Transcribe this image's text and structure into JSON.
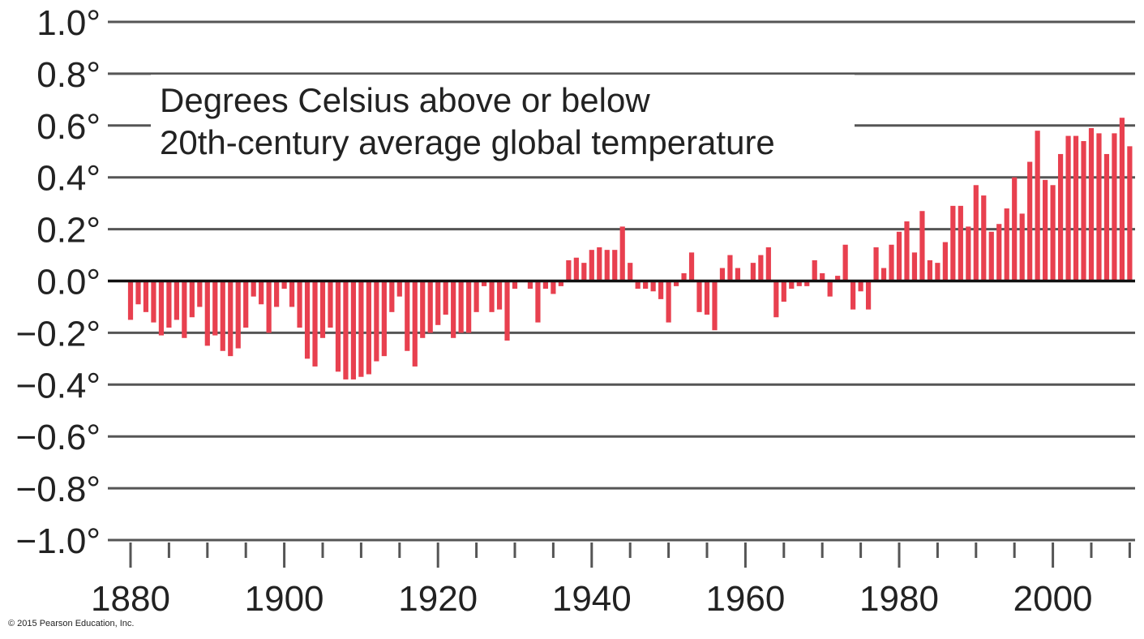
{
  "chart_data": {
    "type": "bar",
    "title_lines": [
      "Degrees Celsius above or below",
      "20th-century average global temperature"
    ],
    "xlabel": "",
    "ylabel": "",
    "ylim": [
      -1.0,
      1.0
    ],
    "xlim": [
      1880,
      2010
    ],
    "yticks": [
      1.0,
      0.8,
      0.6,
      0.4,
      0.2,
      0.0,
      -0.2,
      -0.4,
      -0.6,
      -0.8,
      -1.0
    ],
    "ytick_labels": [
      "1.0°",
      "0.8°",
      "0.6°",
      "0.4°",
      "0.2°",
      "0.0°",
      "−0.2°",
      "−0.4°",
      "−0.6°",
      "−0.8°",
      "−1.0°"
    ],
    "xticks": [
      1880,
      1900,
      1920,
      1940,
      1960,
      1980,
      2000
    ],
    "xtick_labels": [
      "1880",
      "1900",
      "1920",
      "1940",
      "1960",
      "1980",
      "2000"
    ],
    "grid": true,
    "bar_color": "#e8404f",
    "series": [
      {
        "x": [
          1880,
          1881,
          1882,
          1883,
          1884,
          1885,
          1886,
          1887,
          1888,
          1889,
          1890,
          1891,
          1892,
          1893,
          1894,
          1895,
          1896,
          1897,
          1898,
          1899,
          1900,
          1901,
          1902,
          1903,
          1904,
          1905,
          1906,
          1907,
          1908,
          1909,
          1910,
          1911,
          1912,
          1913,
          1914,
          1915,
          1916,
          1917,
          1918,
          1919,
          1920,
          1921,
          1922,
          1923,
          1924,
          1925,
          1926,
          1927,
          1928,
          1929,
          1930,
          1931,
          1932,
          1933,
          1934,
          1935,
          1936,
          1937,
          1938,
          1939,
          1940,
          1941,
          1942,
          1943,
          1944,
          1945,
          1946,
          1947,
          1948,
          1949,
          1950,
          1951,
          1952,
          1953,
          1954,
          1955,
          1956,
          1957,
          1958,
          1959,
          1960,
          1961,
          1962,
          1963,
          1964,
          1965,
          1966,
          1967,
          1968,
          1969,
          1970,
          1971,
          1972,
          1973,
          1974,
          1975,
          1976,
          1977,
          1978,
          1979,
          1980,
          1981,
          1982,
          1983,
          1984,
          1985,
          1986,
          1987,
          1988,
          1989,
          1990,
          1991,
          1992,
          1993,
          1994,
          1995,
          1996,
          1997,
          1998,
          1999,
          2000,
          2001,
          2002,
          2003,
          2004,
          2005,
          2006,
          2007,
          2008,
          2009,
          2010
        ],
        "values": [
          -0.15,
          -0.09,
          -0.12,
          -0.16,
          -0.21,
          -0.18,
          -0.15,
          -0.22,
          -0.14,
          -0.1,
          -0.25,
          -0.21,
          -0.27,
          -0.29,
          -0.26,
          -0.18,
          -0.06,
          -0.09,
          -0.2,
          -0.1,
          -0.03,
          -0.1,
          -0.18,
          -0.3,
          -0.33,
          -0.22,
          -0.18,
          -0.35,
          -0.38,
          -0.38,
          -0.37,
          -0.36,
          -0.31,
          -0.29,
          -0.12,
          -0.06,
          -0.27,
          -0.33,
          -0.22,
          -0.2,
          -0.17,
          -0.13,
          -0.22,
          -0.2,
          -0.2,
          -0.12,
          -0.02,
          -0.12,
          -0.11,
          -0.23,
          -0.03,
          0.0,
          -0.03,
          -0.16,
          -0.03,
          -0.05,
          -0.02,
          0.08,
          0.09,
          0.07,
          0.12,
          0.13,
          0.12,
          0.12,
          0.21,
          0.07,
          -0.03,
          -0.03,
          -0.04,
          -0.07,
          -0.16,
          -0.02,
          0.03,
          0.11,
          -0.12,
          -0.13,
          -0.19,
          0.05,
          0.1,
          0.05,
          0.0,
          0.07,
          0.1,
          0.13,
          -0.14,
          -0.08,
          -0.03,
          -0.02,
          -0.02,
          0.08,
          0.03,
          -0.06,
          0.02,
          0.14,
          -0.11,
          -0.04,
          -0.11,
          0.13,
          0.05,
          0.14,
          0.19,
          0.23,
          0.11,
          0.27,
          0.08,
          0.07,
          0.15,
          0.29,
          0.29,
          0.21,
          0.37,
          0.33,
          0.19,
          0.22,
          0.28,
          0.4,
          0.26,
          0.46,
          0.58,
          0.39,
          0.37,
          0.49,
          0.56,
          0.56,
          0.54,
          0.59,
          0.57,
          0.49,
          0.57,
          0.63,
          0.52
        ]
      }
    ]
  },
  "footer": {
    "copyright": "© 2015 Pearson Education, Inc."
  }
}
